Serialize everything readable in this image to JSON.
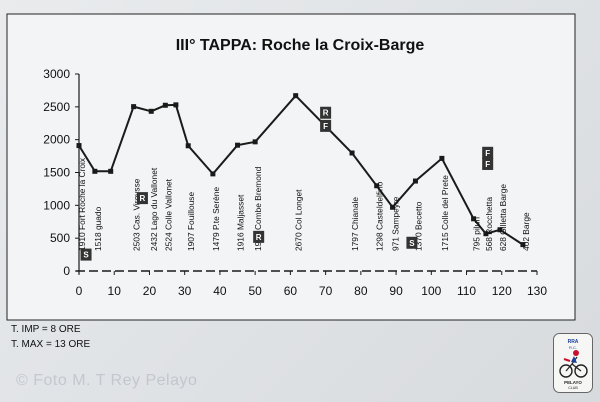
{
  "title": "III° TAPPA: Roche la Croix-Barge",
  "notes": {
    "imp": "T. IMP =    8 ORE",
    "max": "T. MAX =  13 ORE"
  },
  "watermark": "© Foto M. T Rey Pelayo",
  "logo": {
    "top_text": "RRA",
    "mid_text": "R.C.",
    "bottom_text": "PELAYO",
    "sub_text": "CLUB"
  },
  "colors": {
    "line": "#1a1a1a",
    "plot_bg": "#f3f4f5",
    "badge": "#333333"
  },
  "chart_data": {
    "type": "line",
    "title": "III° TAPPA: Roche la Croix-Barge",
    "xlabel": "",
    "ylabel": "",
    "xlim": [
      0,
      130
    ],
    "ylim": [
      0,
      3000
    ],
    "xticks": [
      0,
      10,
      20,
      30,
      40,
      50,
      60,
      70,
      80,
      90,
      100,
      110,
      120,
      130
    ],
    "yticks": [
      0,
      500,
      1000,
      1500,
      2000,
      2500,
      3000
    ],
    "grid": false,
    "baseline": {
      "y": 0,
      "style": "dashed"
    },
    "series": [
      {
        "points": [
          {
            "x": 0,
            "y": 1910,
            "label": "1910 Fort Roche la Croix"
          },
          {
            "x": 4.5,
            "y": 1518,
            "label": "1518 guado"
          },
          {
            "x": 9,
            "y": 1518
          },
          {
            "x": 15.5,
            "y": 2503,
            "label": "2503 Cas. Viroysse"
          },
          {
            "x": 20.5,
            "y": 2432,
            "label": "2432 Lago du Vallonet"
          },
          {
            "x": 24.5,
            "y": 2524,
            "label": "2524 Colle Vallonet"
          },
          {
            "x": 27.5,
            "y": 2530
          },
          {
            "x": 31,
            "y": 1907,
            "label": "1907 Fouillouse"
          },
          {
            "x": 38,
            "y": 1479,
            "label": "1479 P.te Serène"
          },
          {
            "x": 45,
            "y": 1916,
            "label": "1916 Maljasset"
          },
          {
            "x": 50,
            "y": 1967,
            "label": "1967 Combe Bremond"
          },
          {
            "x": 61.5,
            "y": 2670,
            "label": "2670 Col Longet"
          },
          {
            "x": 77.5,
            "y": 1797,
            "label": "1797 Chianale"
          },
          {
            "x": 84.5,
            "y": 1298,
            "label": "1298 Casteldelfino"
          },
          {
            "x": 89,
            "y": 971,
            "label": "971 Sampeyre"
          },
          {
            "x": 95.5,
            "y": 1370,
            "label": "1370 Becetto"
          },
          {
            "x": 103,
            "y": 1715,
            "label": "1715 Colle del Prete"
          },
          {
            "x": 112,
            "y": 795,
            "label": "795 pilun"
          },
          {
            "x": 115.5,
            "y": 568,
            "label": "568 Rocchetta"
          },
          {
            "x": 119.5,
            "y": 628,
            "label": "628 Gilletta Barge"
          },
          {
            "x": 126,
            "y": 402,
            "label": "402 Barge"
          }
        ]
      }
    ],
    "markers": [
      {
        "x": 2,
        "y": 250,
        "text": "S"
      },
      {
        "x": 18,
        "y": 1110,
        "text": "R"
      },
      {
        "x": 51,
        "y": 520,
        "text": "R"
      },
      {
        "x": 70,
        "y": 2410,
        "text": "R"
      },
      {
        "x": 70,
        "y": 2210,
        "text": "F"
      },
      {
        "x": 94.5,
        "y": 430,
        "text": "S"
      },
      {
        "x": 116,
        "y": 1800,
        "text": "F"
      },
      {
        "x": 116,
        "y": 1630,
        "text": "F"
      }
    ]
  }
}
